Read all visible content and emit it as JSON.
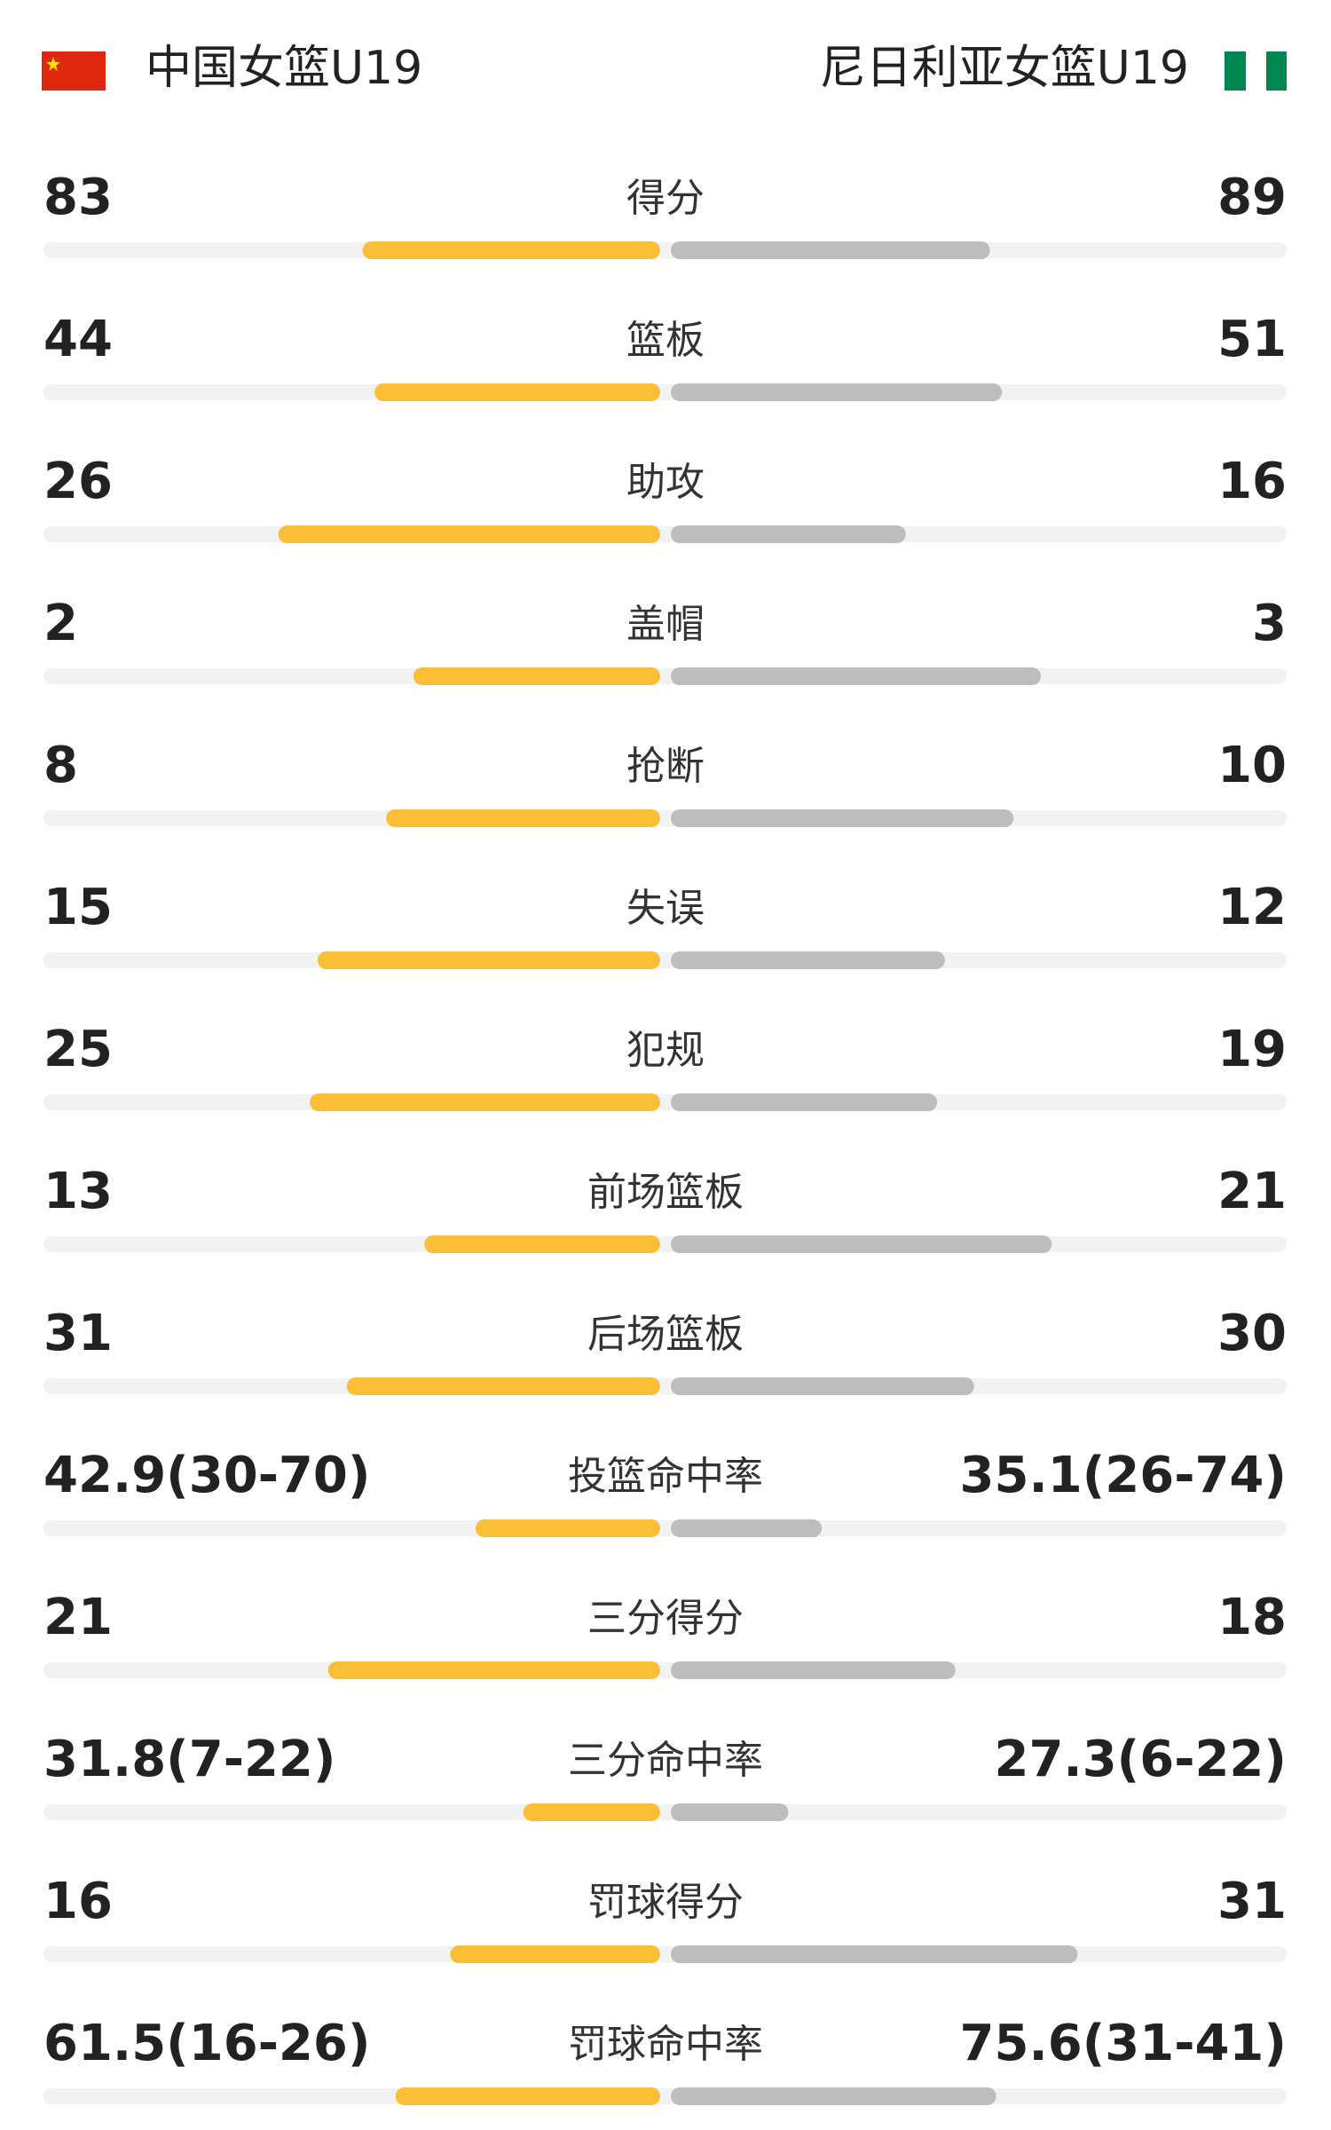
{
  "header": {
    "home": "中国女篮U19",
    "away": "尼日利亚女篮U19"
  },
  "rows": [
    {
      "label": "得分",
      "home": 83,
      "away": 89
    },
    {
      "label": "篮板",
      "home": 44,
      "away": 51
    },
    {
      "label": "助攻",
      "home": 26,
      "away": 16
    },
    {
      "label": "盖帽",
      "home": 2,
      "away": 3
    },
    {
      "label": "抢断",
      "home": 8,
      "away": 10
    },
    {
      "label": "失误",
      "home": 15,
      "away": 12
    },
    {
      "label": "犯规",
      "home": 25,
      "away": 19
    },
    {
      "label": "前场篮板",
      "home": 13,
      "away": 21
    },
    {
      "label": "后场篮板",
      "home": 31,
      "away": 30
    },
    {
      "label": "投篮命中率",
      "home": {
        "value": 42.9,
        "label": "42.9(30-70)"
      },
      "away": {
        "value": 35.1,
        "label": "35.1(26-74)"
      }
    },
    {
      "label": "三分得分",
      "home": 21,
      "away": 18
    },
    {
      "label": "三分命中率",
      "home": {
        "value": 31.8,
        "label": "31.8(7-22)"
      },
      "away": {
        "value": 27.3,
        "label": "27.3(6-22)"
      }
    },
    {
      "label": "罚球得分",
      "home": 16,
      "away": 31
    },
    {
      "label": "罚球命中率",
      "home": {
        "value": 61.5,
        "label": "61.5(16-26)"
      },
      "away": {
        "value": 75.6,
        "label": "75.6(31-41)"
      }
    }
  ]
}
